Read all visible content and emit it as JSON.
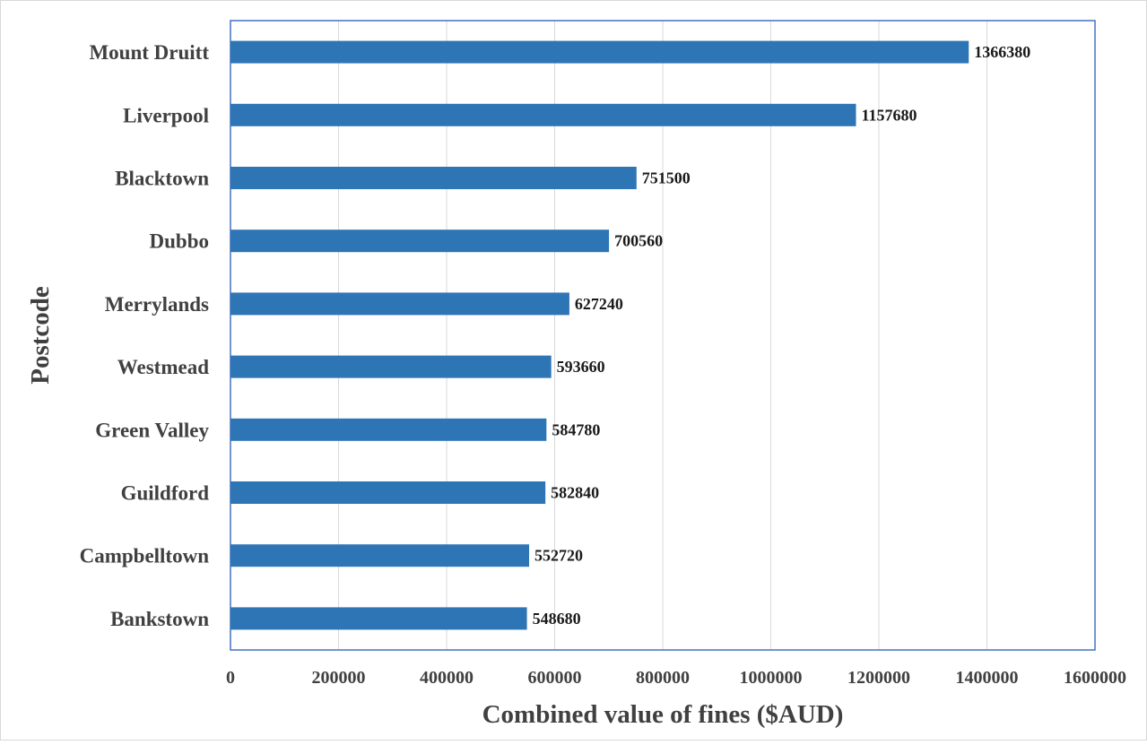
{
  "chart_data": {
    "type": "bar",
    "orientation": "horizontal",
    "xlabel": "Combined value of fines ($AUD)",
    "ylabel": "Postcode",
    "xlim": [
      0,
      1600000
    ],
    "xticks": [
      0,
      200000,
      400000,
      600000,
      800000,
      1000000,
      1200000,
      1400000,
      1600000
    ],
    "tick_labels": [
      "0",
      "200000",
      "400000",
      "600000",
      "800000",
      "1000000",
      "1200000",
      "1400000",
      "1600000"
    ],
    "grid": "vertical",
    "legend": "none",
    "bar_color": "#2e75b6",
    "grid_color": "#d9d9d9",
    "plot_border_color": "#4472c4",
    "categories": [
      "Mount Druitt",
      "Liverpool",
      "Blacktown",
      "Dubbo",
      "Merrylands",
      "Westmead",
      "Green Valley",
      "Guildford",
      "Campbelltown",
      "Bankstown"
    ],
    "values": [
      1366380,
      1157680,
      751500,
      700560,
      627240,
      593660,
      584780,
      582840,
      552720,
      548680
    ],
    "data_labels": [
      "1366380",
      "1157680",
      "751500",
      "700560",
      "627240",
      "593660",
      "584780",
      "582840",
      "552720",
      "548680"
    ]
  }
}
